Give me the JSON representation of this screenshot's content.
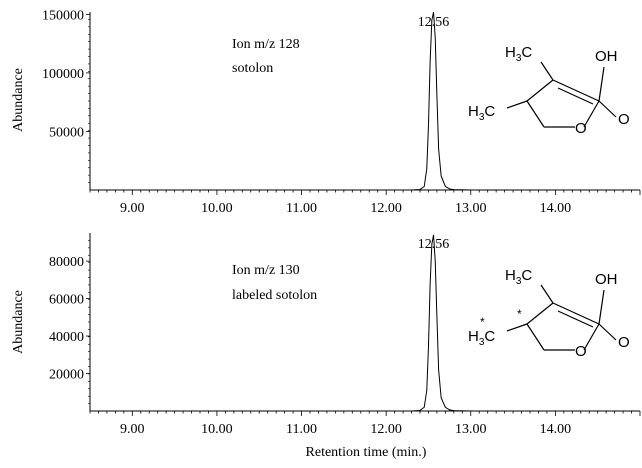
{
  "chart_data": [
    {
      "type": "line",
      "title": "",
      "xlabel": "",
      "ylabel": "Abundance",
      "xlim": [
        8.5,
        15.0
      ],
      "ylim": [
        0,
        152000
      ],
      "x_ticks": [
        "9.00",
        "10.00",
        "11.00",
        "12.00",
        "13.00",
        "14.00"
      ],
      "y_ticks": [
        "50000",
        "100000",
        "150000"
      ],
      "peak_label": "12.56",
      "annotation": [
        "Ion m/z 128",
        "sotolon"
      ],
      "series": [
        {
          "x": [
            8.5,
            12.3,
            12.4,
            12.45,
            12.48,
            12.5,
            12.52,
            12.54,
            12.56,
            12.58,
            12.6,
            12.62,
            12.65,
            12.7,
            12.75,
            12.8,
            13.0,
            15.0
          ],
          "y": [
            0,
            0,
            400,
            3000,
            18000,
            55000,
            110000,
            145000,
            152000,
            130000,
            80000,
            35000,
            12000,
            3000,
            900,
            300,
            0,
            0
          ]
        }
      ],
      "structure": {
        "labels": {
          "h3c_top": "H",
          "h3c_top_sub": "3",
          "h3c_top_c": "C",
          "oh": "OH",
          "h3c_bot": "H",
          "h3c_bot_sub": "3",
          "h3c_bot_c": "C",
          "o_ring": "O",
          "o_keto": "O"
        }
      }
    },
    {
      "type": "line",
      "title": "",
      "xlabel": "Retention time (min.)",
      "ylabel": "Abundance",
      "xlim": [
        8.5,
        15.0
      ],
      "ylim": [
        0,
        95000
      ],
      "x_ticks": [
        "9.00",
        "10.00",
        "11.00",
        "12.00",
        "13.00",
        "14.00"
      ],
      "y_ticks": [
        "20000",
        "40000",
        "60000",
        "80000"
      ],
      "peak_label": "12.56",
      "annotation": [
        "Ion m/z 130",
        "labeled sotolon"
      ],
      "series": [
        {
          "x": [
            8.5,
            12.3,
            12.4,
            12.45,
            12.48,
            12.5,
            12.52,
            12.54,
            12.56,
            12.58,
            12.6,
            12.62,
            12.65,
            12.7,
            12.75,
            12.8,
            13.0,
            15.0
          ],
          "y": [
            0,
            0,
            300,
            2000,
            11000,
            34000,
            68000,
            89000,
            94000,
            80000,
            50000,
            22000,
            7000,
            2000,
            600,
            200,
            0,
            0
          ]
        }
      ],
      "structure": {
        "labels": {
          "h3c_top": "H",
          "h3c_top_sub": "3",
          "h3c_top_c": "C",
          "oh": "OH",
          "h3c_bot": "H",
          "h3c_bot_sub": "3",
          "h3c_bot_c": "C",
          "star_methyl": "*",
          "star_ring": "*",
          "o_ring": "O",
          "o_keto": "O"
        }
      }
    }
  ]
}
